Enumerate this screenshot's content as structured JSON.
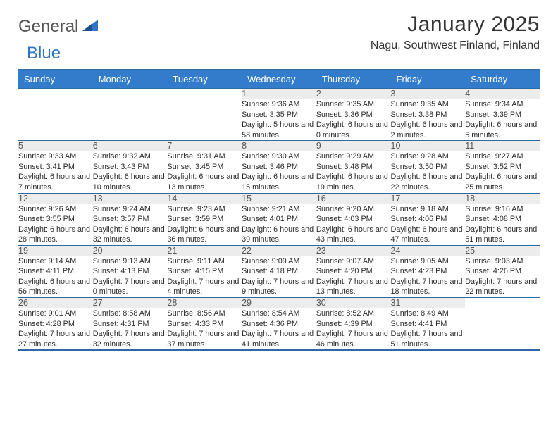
{
  "logo": {
    "text1": "General",
    "text2": "Blue"
  },
  "title": "January 2025",
  "subtitle": "Nagu, Southwest Finland, Finland",
  "colors": {
    "header_bg": "#337ccb",
    "header_fg": "#ffffff",
    "border": "#2e69a5",
    "daynum_bg": "#ececec",
    "logo_blue": "#2e75c8",
    "logo_gray": "#555555",
    "text": "#2b2b2b",
    "bg": "#ffffff"
  },
  "typography": {
    "title_fontsize": 30,
    "subtitle_fontsize": 16,
    "header_fontsize": 13,
    "daynum_fontsize": 12.5,
    "detail_fontsize": 10.8
  },
  "weekdays": [
    "Sunday",
    "Monday",
    "Tuesday",
    "Wednesday",
    "Thursday",
    "Friday",
    "Saturday"
  ],
  "weeks": [
    [
      null,
      null,
      null,
      {
        "n": "1",
        "sr": "9:36 AM",
        "ss": "3:35 PM",
        "dl": "5 hours and 58 minutes."
      },
      {
        "n": "2",
        "sr": "9:35 AM",
        "ss": "3:36 PM",
        "dl": "6 hours and 0 minutes."
      },
      {
        "n": "3",
        "sr": "9:35 AM",
        "ss": "3:38 PM",
        "dl": "6 hours and 2 minutes."
      },
      {
        "n": "4",
        "sr": "9:34 AM",
        "ss": "3:39 PM",
        "dl": "6 hours and 5 minutes."
      }
    ],
    [
      {
        "n": "5",
        "sr": "9:33 AM",
        "ss": "3:41 PM",
        "dl": "6 hours and 7 minutes."
      },
      {
        "n": "6",
        "sr": "9:32 AM",
        "ss": "3:43 PM",
        "dl": "6 hours and 10 minutes."
      },
      {
        "n": "7",
        "sr": "9:31 AM",
        "ss": "3:45 PM",
        "dl": "6 hours and 13 minutes."
      },
      {
        "n": "8",
        "sr": "9:30 AM",
        "ss": "3:46 PM",
        "dl": "6 hours and 15 minutes."
      },
      {
        "n": "9",
        "sr": "9:29 AM",
        "ss": "3:48 PM",
        "dl": "6 hours and 19 minutes."
      },
      {
        "n": "10",
        "sr": "9:28 AM",
        "ss": "3:50 PM",
        "dl": "6 hours and 22 minutes."
      },
      {
        "n": "11",
        "sr": "9:27 AM",
        "ss": "3:52 PM",
        "dl": "6 hours and 25 minutes."
      }
    ],
    [
      {
        "n": "12",
        "sr": "9:26 AM",
        "ss": "3:55 PM",
        "dl": "6 hours and 28 minutes."
      },
      {
        "n": "13",
        "sr": "9:24 AM",
        "ss": "3:57 PM",
        "dl": "6 hours and 32 minutes."
      },
      {
        "n": "14",
        "sr": "9:23 AM",
        "ss": "3:59 PM",
        "dl": "6 hours and 36 minutes."
      },
      {
        "n": "15",
        "sr": "9:21 AM",
        "ss": "4:01 PM",
        "dl": "6 hours and 39 minutes."
      },
      {
        "n": "16",
        "sr": "9:20 AM",
        "ss": "4:03 PM",
        "dl": "6 hours and 43 minutes."
      },
      {
        "n": "17",
        "sr": "9:18 AM",
        "ss": "4:06 PM",
        "dl": "6 hours and 47 minutes."
      },
      {
        "n": "18",
        "sr": "9:16 AM",
        "ss": "4:08 PM",
        "dl": "6 hours and 51 minutes."
      }
    ],
    [
      {
        "n": "19",
        "sr": "9:14 AM",
        "ss": "4:11 PM",
        "dl": "6 hours and 56 minutes."
      },
      {
        "n": "20",
        "sr": "9:13 AM",
        "ss": "4:13 PM",
        "dl": "7 hours and 0 minutes."
      },
      {
        "n": "21",
        "sr": "9:11 AM",
        "ss": "4:15 PM",
        "dl": "7 hours and 4 minutes."
      },
      {
        "n": "22",
        "sr": "9:09 AM",
        "ss": "4:18 PM",
        "dl": "7 hours and 9 minutes."
      },
      {
        "n": "23",
        "sr": "9:07 AM",
        "ss": "4:20 PM",
        "dl": "7 hours and 13 minutes."
      },
      {
        "n": "24",
        "sr": "9:05 AM",
        "ss": "4:23 PM",
        "dl": "7 hours and 18 minutes."
      },
      {
        "n": "25",
        "sr": "9:03 AM",
        "ss": "4:26 PM",
        "dl": "7 hours and 22 minutes."
      }
    ],
    [
      {
        "n": "26",
        "sr": "9:01 AM",
        "ss": "4:28 PM",
        "dl": "7 hours and 27 minutes."
      },
      {
        "n": "27",
        "sr": "8:58 AM",
        "ss": "4:31 PM",
        "dl": "7 hours and 32 minutes."
      },
      {
        "n": "28",
        "sr": "8:56 AM",
        "ss": "4:33 PM",
        "dl": "7 hours and 37 minutes."
      },
      {
        "n": "29",
        "sr": "8:54 AM",
        "ss": "4:36 PM",
        "dl": "7 hours and 41 minutes."
      },
      {
        "n": "30",
        "sr": "8:52 AM",
        "ss": "4:39 PM",
        "dl": "7 hours and 46 minutes."
      },
      {
        "n": "31",
        "sr": "8:49 AM",
        "ss": "4:41 PM",
        "dl": "7 hours and 51 minutes."
      },
      null
    ]
  ],
  "labels": {
    "sunrise": "Sunrise:",
    "sunset": "Sunset:",
    "daylight": "Daylight:"
  }
}
